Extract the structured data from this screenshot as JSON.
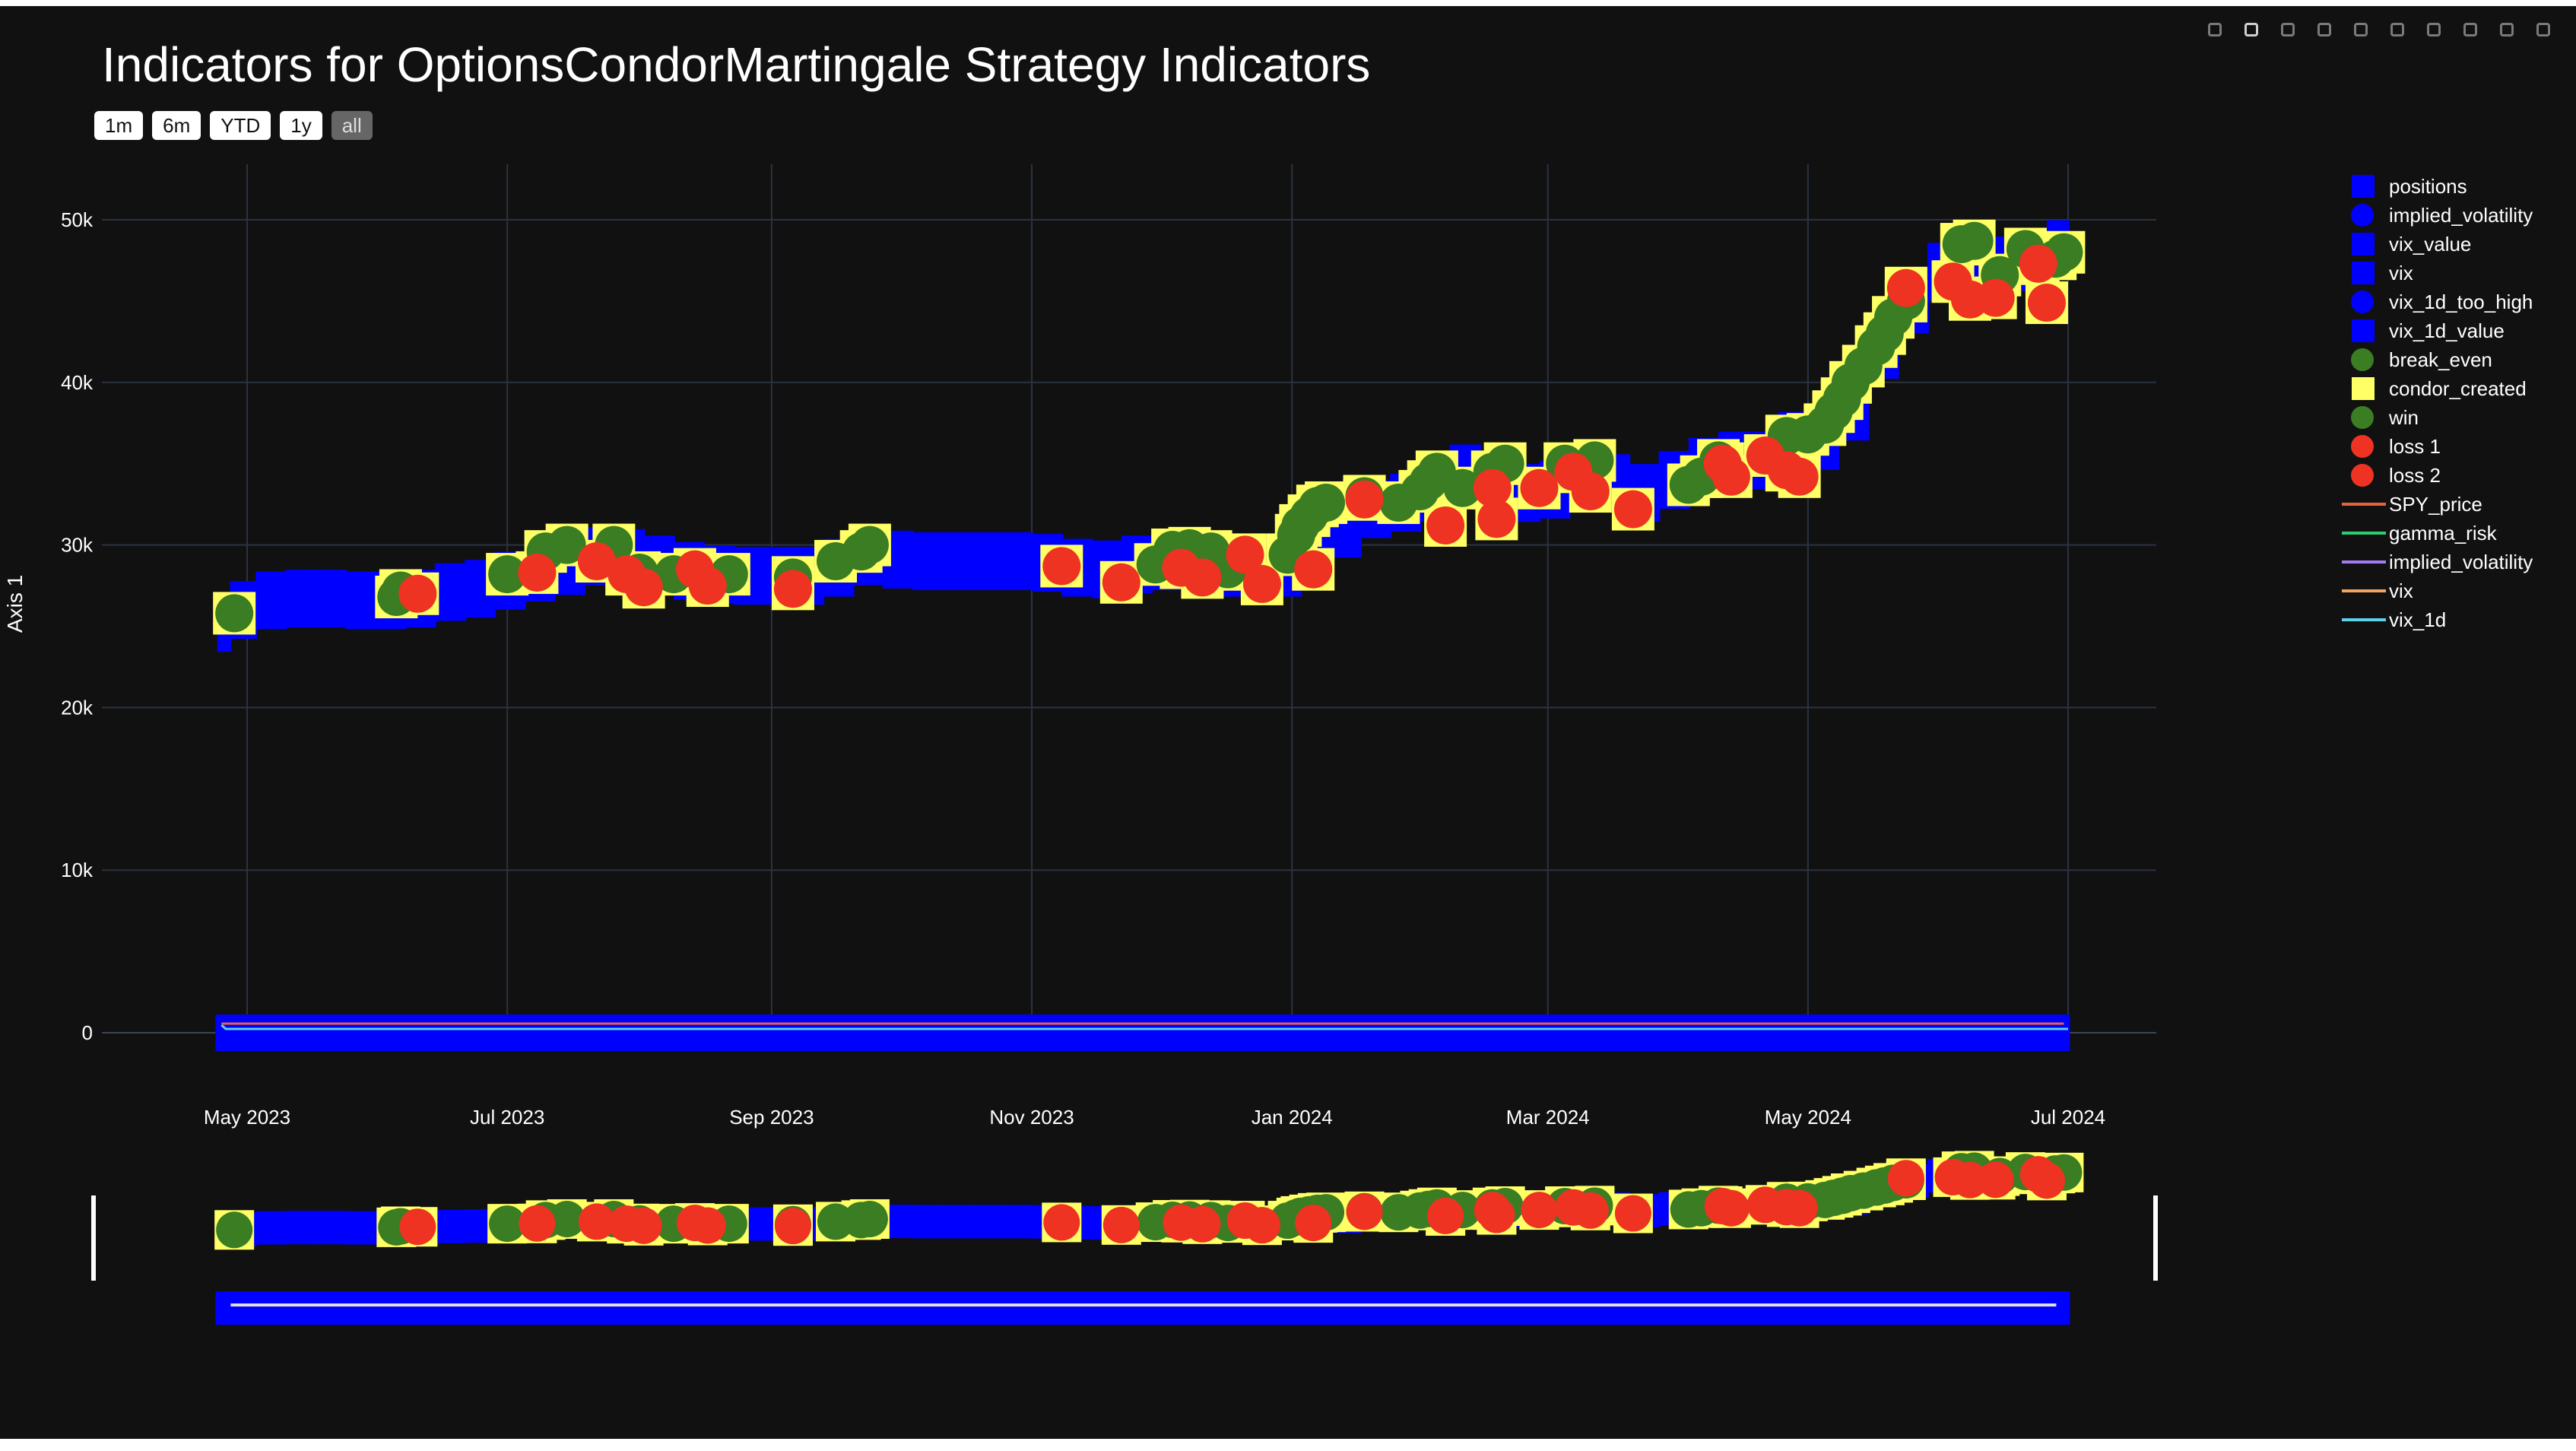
{
  "title": "Indicators for OptionsCondorMartingale Strategy Indicators",
  "range_buttons": [
    {
      "label": "1m",
      "active": false
    },
    {
      "label": "6m",
      "active": false
    },
    {
      "label": "YTD",
      "active": false
    },
    {
      "label": "1y",
      "active": false
    },
    {
      "label": "all",
      "active": true
    }
  ],
  "toolbar_icons": [
    "camera-icon",
    "zoom-icon",
    "pan-icon",
    "box-select-icon",
    "lasso-select-icon",
    "zoom-in-icon",
    "zoom-out-icon",
    "autoscale-icon",
    "reset-axes-icon",
    "plotly-logo-icon"
  ],
  "legend": [
    {
      "label": "positions",
      "symbol": "square",
      "color": "#0000ff"
    },
    {
      "label": "implied_volatility",
      "symbol": "circle",
      "color": "#0000ff"
    },
    {
      "label": "vix_value",
      "symbol": "square",
      "color": "#0000ff"
    },
    {
      "label": "vix",
      "symbol": "square",
      "color": "#0000ff"
    },
    {
      "label": "vix_1d_too_high",
      "symbol": "circle",
      "color": "#0000ff"
    },
    {
      "label": "vix_1d_value",
      "symbol": "square",
      "color": "#0000ff"
    },
    {
      "label": "break_even",
      "symbol": "circle",
      "color": "#3a7d22"
    },
    {
      "label": "condor_created",
      "symbol": "square",
      "color": "#ffff66"
    },
    {
      "label": "win",
      "symbol": "circle",
      "color": "#3a7d22"
    },
    {
      "label": "loss 1",
      "symbol": "circle",
      "color": "#ee3322"
    },
    {
      "label": "loss 2",
      "symbol": "circle",
      "color": "#ee3322"
    },
    {
      "label": "SPY_price",
      "symbol": "line",
      "color": "#e8603c"
    },
    {
      "label": "gamma_risk",
      "symbol": "line",
      "color": "#2ecc71"
    },
    {
      "label": "implied_volatility",
      "symbol": "line",
      "color": "#a57cf0"
    },
    {
      "label": "vix",
      "symbol": "line",
      "color": "#f4a460"
    },
    {
      "label": "vix_1d",
      "symbol": "line",
      "color": "#5bd3e8"
    }
  ],
  "chart_data": {
    "type": "scatter",
    "title": "Indicators for OptionsCondorMartingale Strategy Indicators",
    "ylabel": "Axis 1",
    "xlabel": "",
    "x_tick_labels": [
      "May 2023",
      "Jul 2023",
      "Sep 2023",
      "Nov 2023",
      "Jan 2024",
      "Mar 2024",
      "May 2024",
      "Jul 2024"
    ],
    "x_tick_dates": [
      "2023-05-01",
      "2023-07-01",
      "2023-09-01",
      "2023-11-01",
      "2024-01-01",
      "2024-03-01",
      "2024-05-01",
      "2024-07-01"
    ],
    "y_tick_labels": [
      "0",
      "10k",
      "20k",
      "30k",
      "40k",
      "50k"
    ],
    "y_tick_values": [
      0,
      10000,
      20000,
      30000,
      40000,
      50000
    ],
    "ylim": [
      -1500,
      54000
    ],
    "xlim": [
      "2023-04-15",
      "2024-07-15"
    ],
    "grid": true,
    "legend_position": "right",
    "colors": {
      "positions": "#0000ff",
      "condor_created": "#ffff66",
      "win": "#3a7d22",
      "loss": "#ee3322",
      "vix_1d": "#5bd3e8",
      "SPY_price": "#e8603c"
    },
    "positions": [
      [
        "2023-04-24",
        25200
      ],
      [
        "2023-04-27",
        26000
      ],
      [
        "2023-05-03",
        26600
      ],
      [
        "2023-05-10",
        26700
      ],
      [
        "2023-05-17",
        26700
      ],
      [
        "2023-05-24",
        26600
      ],
      [
        "2023-05-31",
        26600
      ],
      [
        "2023-06-07",
        26700
      ],
      [
        "2023-06-14",
        27100
      ],
      [
        "2023-06-21",
        27300
      ],
      [
        "2023-06-28",
        27800
      ],
      [
        "2023-07-05",
        28300
      ],
      [
        "2023-07-12",
        28700
      ],
      [
        "2023-07-19",
        29300
      ],
      [
        "2023-07-26",
        29200
      ],
      [
        "2023-08-02",
        28800
      ],
      [
        "2023-08-09",
        28400
      ],
      [
        "2023-08-16",
        28200
      ],
      [
        "2023-08-23",
        28100
      ],
      [
        "2023-08-30",
        28100
      ],
      [
        "2023-09-06",
        28100
      ],
      [
        "2023-09-13",
        28600
      ],
      [
        "2023-09-20",
        29300
      ],
      [
        "2023-09-27",
        29100
      ],
      [
        "2023-10-04",
        29000
      ],
      [
        "2023-10-11",
        29000
      ],
      [
        "2023-10-18",
        29000
      ],
      [
        "2023-10-25",
        29000
      ],
      [
        "2023-11-01",
        28900
      ],
      [
        "2023-11-08",
        28600
      ],
      [
        "2023-11-15",
        28500
      ],
      [
        "2023-11-22",
        28800
      ],
      [
        "2023-11-29",
        29000
      ],
      [
        "2023-12-06",
        28700
      ],
      [
        "2023-12-13",
        28600
      ],
      [
        "2023-12-20",
        28500
      ],
      [
        "2023-12-27",
        28600
      ],
      [
        "2024-01-03",
        29500
      ],
      [
        "2024-01-10",
        31000
      ],
      [
        "2024-01-17",
        32200
      ],
      [
        "2024-01-24",
        32600
      ],
      [
        "2024-01-31",
        33200
      ],
      [
        "2024-02-07",
        34400
      ],
      [
        "2024-02-14",
        33800
      ],
      [
        "2024-02-21",
        33200
      ],
      [
        "2024-02-28",
        33400
      ],
      [
        "2024-03-06",
        34000
      ],
      [
        "2024-03-13",
        33800
      ],
      [
        "2024-03-20",
        33200
      ],
      [
        "2024-03-27",
        34000
      ],
      [
        "2024-04-03",
        34800
      ],
      [
        "2024-04-10",
        35200
      ],
      [
        "2024-04-17",
        35200
      ],
      [
        "2024-04-24",
        36400
      ],
      [
        "2024-05-01",
        36400
      ],
      [
        "2024-05-08",
        38200
      ],
      [
        "2024-05-15",
        42000
      ],
      [
        "2024-05-22",
        44800
      ],
      [
        "2024-05-29",
        46800
      ],
      [
        "2024-06-05",
        47200
      ],
      [
        "2024-06-12",
        47200
      ],
      [
        "2024-06-19",
        47400
      ],
      [
        "2024-06-26",
        48200
      ]
    ],
    "win": [
      [
        "2023-04-28",
        25800
      ],
      [
        "2023-06-05",
        26800
      ],
      [
        "2023-06-06",
        27200
      ],
      [
        "2023-07-01",
        28200
      ],
      [
        "2023-07-10",
        29600
      ],
      [
        "2023-07-15",
        30000
      ],
      [
        "2023-07-26",
        30000
      ],
      [
        "2023-08-01",
        28300
      ],
      [
        "2023-08-09",
        28200
      ],
      [
        "2023-08-22",
        28200
      ],
      [
        "2023-09-06",
        28000
      ],
      [
        "2023-09-16",
        29000
      ],
      [
        "2023-09-22",
        29600
      ],
      [
        "2023-09-24",
        30000
      ],
      [
        "2023-11-30",
        28800
      ],
      [
        "2023-12-04",
        29700
      ],
      [
        "2023-12-08",
        29800
      ],
      [
        "2023-12-13",
        29600
      ],
      [
        "2023-12-17",
        28500
      ],
      [
        "2023-12-31",
        29400
      ],
      [
        "2024-01-02",
        30600
      ],
      [
        "2024-01-03",
        31200
      ],
      [
        "2024-01-05",
        31800
      ],
      [
        "2024-01-07",
        32400
      ],
      [
        "2024-01-09",
        32600
      ],
      [
        "2024-01-18",
        33000
      ],
      [
        "2024-01-26",
        32600
      ],
      [
        "2024-01-31",
        33300
      ],
      [
        "2024-02-02",
        33900
      ],
      [
        "2024-02-04",
        34500
      ],
      [
        "2024-02-10",
        33500
      ],
      [
        "2024-02-17",
        34500
      ],
      [
        "2024-02-20",
        35000
      ],
      [
        "2024-03-05",
        35000
      ],
      [
        "2024-03-12",
        35200
      ],
      [
        "2024-04-03",
        33700
      ],
      [
        "2024-04-06",
        34200
      ],
      [
        "2024-04-10",
        35200
      ],
      [
        "2024-04-26",
        36700
      ],
      [
        "2024-05-01",
        36800
      ],
      [
        "2024-05-05",
        37400
      ],
      [
        "2024-05-07",
        38200
      ],
      [
        "2024-05-09",
        39000
      ],
      [
        "2024-05-11",
        40000
      ],
      [
        "2024-05-14",
        41000
      ],
      [
        "2024-05-17",
        42200
      ],
      [
        "2024-05-19",
        43000
      ],
      [
        "2024-05-21",
        44000
      ],
      [
        "2024-05-24",
        45000
      ],
      [
        "2024-06-06",
        48500
      ],
      [
        "2024-06-09",
        48700
      ],
      [
        "2024-06-15",
        46600
      ],
      [
        "2024-06-21",
        48200
      ],
      [
        "2024-06-28",
        47600
      ],
      [
        "2024-06-30",
        48000
      ]
    ],
    "loss": [
      [
        "2023-06-10",
        27000
      ],
      [
        "2023-07-08",
        28300
      ],
      [
        "2023-07-22",
        29000
      ],
      [
        "2023-07-29",
        28200
      ],
      [
        "2023-08-02",
        27400
      ],
      [
        "2023-08-14",
        28500
      ],
      [
        "2023-08-17",
        27500
      ],
      [
        "2023-09-06",
        27300
      ],
      [
        "2023-11-08",
        28700
      ],
      [
        "2023-11-22",
        27700
      ],
      [
        "2023-12-06",
        28600
      ],
      [
        "2023-12-11",
        28000
      ],
      [
        "2023-12-21",
        29400
      ],
      [
        "2023-12-25",
        27600
      ],
      [
        "2024-01-06",
        28500
      ],
      [
        "2024-01-18",
        32800
      ],
      [
        "2024-02-06",
        31200
      ],
      [
        "2024-02-17",
        33500
      ],
      [
        "2024-02-18",
        31600
      ],
      [
        "2024-02-28",
        33500
      ],
      [
        "2024-03-07",
        34500
      ],
      [
        "2024-03-11",
        33300
      ],
      [
        "2024-03-21",
        32200
      ],
      [
        "2024-04-11",
        35000
      ],
      [
        "2024-04-13",
        34200
      ],
      [
        "2024-04-21",
        35500
      ],
      [
        "2024-04-26",
        34600
      ],
      [
        "2024-04-29",
        34200
      ],
      [
        "2024-05-24",
        45800
      ],
      [
        "2024-06-04",
        46200
      ],
      [
        "2024-06-08",
        45100
      ],
      [
        "2024-06-14",
        45200
      ],
      [
        "2024-06-24",
        47300
      ],
      [
        "2024-06-26",
        44900
      ]
    ],
    "vix_1d": [
      [
        "2023-04-25",
        1000
      ],
      [
        "2023-04-26",
        500
      ],
      [
        "2024-07-01",
        500
      ]
    ],
    "SPY_price": [
      [
        "2023-04-25",
        410
      ],
      [
        "2024-07-01",
        545
      ]
    ],
    "range_slider": {
      "present": true
    }
  }
}
